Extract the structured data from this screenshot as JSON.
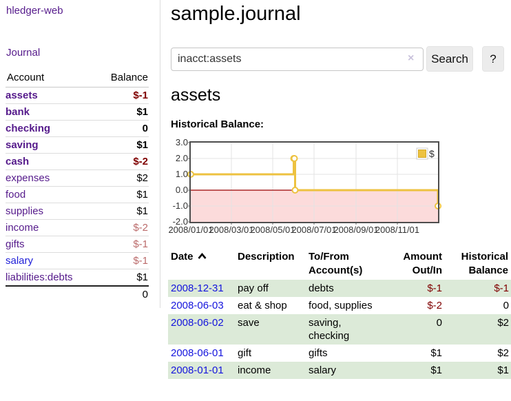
{
  "app": {
    "brand": "hledger-web",
    "nav_journal": "Journal"
  },
  "sidebar": {
    "accounts_header": {
      "account": "Account",
      "balance": "Balance"
    },
    "accounts": [
      {
        "name": "assets",
        "indent": 1,
        "bold": true,
        "balance": "$-1",
        "neg": "neg-strong"
      },
      {
        "name": "bank",
        "indent": 2,
        "bold": true,
        "balance": "$1",
        "neg": ""
      },
      {
        "name": "checking",
        "indent": 3,
        "bold": true,
        "balance": "0",
        "neg": ""
      },
      {
        "name": "saving",
        "indent": 3,
        "bold": true,
        "balance": "$1",
        "neg": ""
      },
      {
        "name": "cash",
        "indent": 2,
        "bold": true,
        "balance": "$-2",
        "neg": "neg-strong"
      },
      {
        "name": "expenses",
        "indent": 1,
        "bold": false,
        "balance": "$2",
        "neg": ""
      },
      {
        "name": "food",
        "indent": 2,
        "bold": false,
        "balance": "$1",
        "neg": ""
      },
      {
        "name": "supplies",
        "indent": 2,
        "bold": false,
        "balance": "$1",
        "neg": ""
      },
      {
        "name": "income",
        "indent": 1,
        "bold": false,
        "balance": "$-2",
        "neg": "neg-soft"
      },
      {
        "name": "gifts",
        "indent": 2,
        "bold": false,
        "balance": "$-1",
        "neg": "neg-soft"
      },
      {
        "name": "salary",
        "indent": 2,
        "bold": false,
        "blue": true,
        "balance": "$-1",
        "neg": "neg-soft"
      },
      {
        "name": "liabilities:debts",
        "indent": 1,
        "bold": false,
        "balance": "$1",
        "neg": ""
      }
    ],
    "total": "0"
  },
  "header": {
    "title": "sample.journal"
  },
  "search": {
    "query": "inacct:assets",
    "clear_icon": "×",
    "button_label": "Search",
    "help_label": "?"
  },
  "account_page": {
    "title": "assets",
    "chart_label": "Historical Balance:"
  },
  "chart_data": {
    "type": "line",
    "title": "Historical Balance",
    "step": true,
    "series": [
      {
        "name": "$",
        "color": "#edc240",
        "points": [
          [
            "2008-01-01",
            1
          ],
          [
            "2008-06-01",
            2
          ],
          [
            "2008-06-02",
            2
          ],
          [
            "2008-06-03",
            0
          ],
          [
            "2008-12-31",
            -1
          ]
        ]
      }
    ],
    "x_ticks": [
      "2008/01/01",
      "2008/03/01",
      "2008/05/01",
      "2008/07/01",
      "2008/09/01",
      "2008/11/01"
    ],
    "y_ticks": [
      3.0,
      2.0,
      1.0,
      0.0,
      -1.0,
      -2.0
    ],
    "ylim": [
      -2,
      3
    ],
    "xlim": [
      "2008-01-01",
      "2008-12-31"
    ],
    "grid": true,
    "legend_position": "top-right",
    "negative_fill": "#fcdbdb",
    "zero_line_color": "#990000",
    "grid_color": "#e3e3e3",
    "border_color": "#4d4d4d"
  },
  "register": {
    "columns": [
      {
        "line1": "Date",
        "line2": "",
        "sorted": true,
        "align": "left"
      },
      {
        "line1": "Description",
        "line2": "",
        "sorted": false,
        "align": "left"
      },
      {
        "line1": "To/From",
        "line2": "Account(s)",
        "sorted": false,
        "align": "left"
      },
      {
        "line1": "Amount",
        "line2": "Out/In",
        "sorted": false,
        "align": "right"
      },
      {
        "line1": "Historical",
        "line2": "Balance",
        "sorted": false,
        "align": "right"
      }
    ],
    "rows": [
      {
        "date": "2008-12-31",
        "description": "pay off",
        "accounts": "debts",
        "amount": "$-1",
        "amount_neg": true,
        "balance": "$-1",
        "balance_neg": true,
        "shaded": true
      },
      {
        "date": "2008-06-03",
        "description": "eat & shop",
        "accounts": "food, supplies",
        "amount": "$-2",
        "amount_neg": true,
        "balance": "0",
        "balance_neg": false,
        "shaded": false
      },
      {
        "date": "2008-06-02",
        "description": "save",
        "accounts": "saving, checking",
        "amount": "0",
        "amount_neg": false,
        "balance": "$2",
        "balance_neg": false,
        "shaded": true
      },
      {
        "date": "2008-06-01",
        "description": "gift",
        "accounts": "gifts",
        "amount": "$1",
        "amount_neg": false,
        "balance": "$2",
        "balance_neg": false,
        "shaded": false
      },
      {
        "date": "2008-01-01",
        "description": "income",
        "accounts": "salary",
        "amount": "$1",
        "amount_neg": false,
        "balance": "$1",
        "balance_neg": false,
        "shaded": true
      }
    ]
  },
  "colors": {
    "link_purple": "#551a8b",
    "link_blue": "#1414dd",
    "negative_strong": "#7f0000",
    "negative_soft": "#bb6b6b",
    "row_stripe_green": "#dcead8",
    "chart_line_gold": "#edc240",
    "chart_negative_fill": "#fcdbdb",
    "chart_zero_line": "#990000"
  }
}
